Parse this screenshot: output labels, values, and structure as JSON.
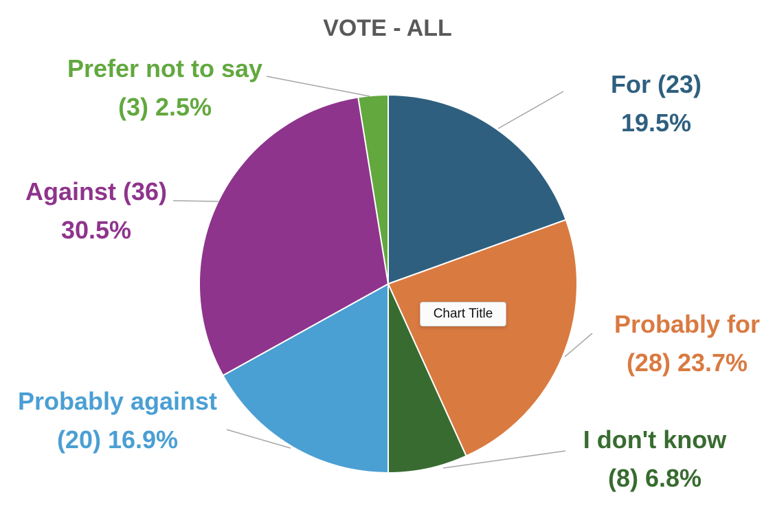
{
  "chart_data": {
    "type": "pie",
    "title": "VOTE - ALL",
    "slices": [
      {
        "name": "For",
        "count": 23,
        "percent": 19.5,
        "color": "#2e5f7f",
        "label_line1": "For (23)",
        "label_line2": "19.5%"
      },
      {
        "name": "Probably for",
        "count": 28,
        "percent": 23.7,
        "color": "#d97a41",
        "label_line1": "Probably for",
        "label_line2": "(28) 23.7%"
      },
      {
        "name": "I don't know",
        "count": 8,
        "percent": 6.8,
        "color": "#386b30",
        "label_line1": "I don't know",
        "label_line2": "(8) 6.8%"
      },
      {
        "name": "Probably against",
        "count": 20,
        "percent": 16.9,
        "color": "#4a9fd3",
        "label_line1": "Probably against",
        "label_line2": "(20) 16.9%"
      },
      {
        "name": "Against",
        "count": 36,
        "percent": 30.5,
        "color": "#8e348c",
        "label_line1": "Against (36)",
        "label_line2": "30.5%"
      },
      {
        "name": "Prefer not to say",
        "count": 3,
        "percent": 2.5,
        "color": "#62a83f",
        "label_line1": "Prefer not to say",
        "label_line2": "(3) 2.5%"
      }
    ],
    "legend": "none"
  },
  "tooltip": {
    "text": "Chart Title"
  }
}
